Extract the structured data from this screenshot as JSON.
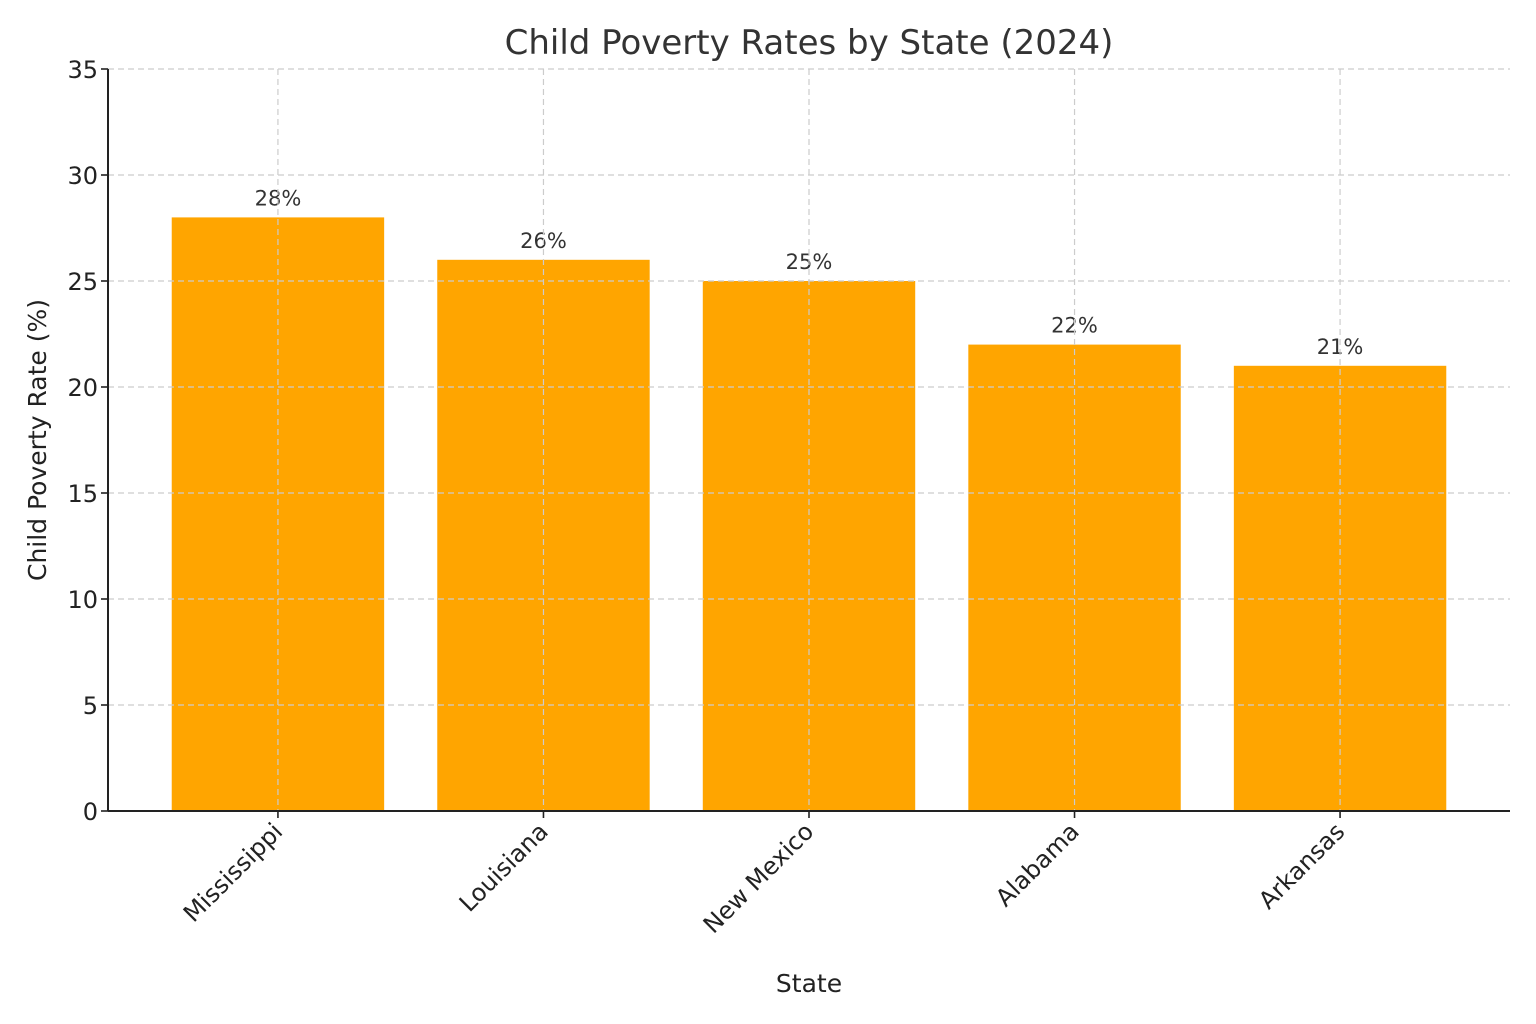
{
  "chart_data": {
    "type": "bar",
    "title": "Child Poverty Rates by State (2024)",
    "xlabel": "State",
    "ylabel": "Child Poverty Rate (%)",
    "categories": [
      "Mississippi",
      "Louisiana",
      "New Mexico",
      "Alabama",
      "Arkansas"
    ],
    "values": [
      28,
      26,
      25,
      22,
      21
    ],
    "data_labels": [
      "28%",
      "26%",
      "25%",
      "22%",
      "21%"
    ],
    "ylim": [
      0,
      35
    ],
    "yticks": [
      0,
      5,
      10,
      15,
      20,
      25,
      30,
      35
    ],
    "grid": true,
    "bar_color": "#FFA500",
    "legend": "none"
  }
}
